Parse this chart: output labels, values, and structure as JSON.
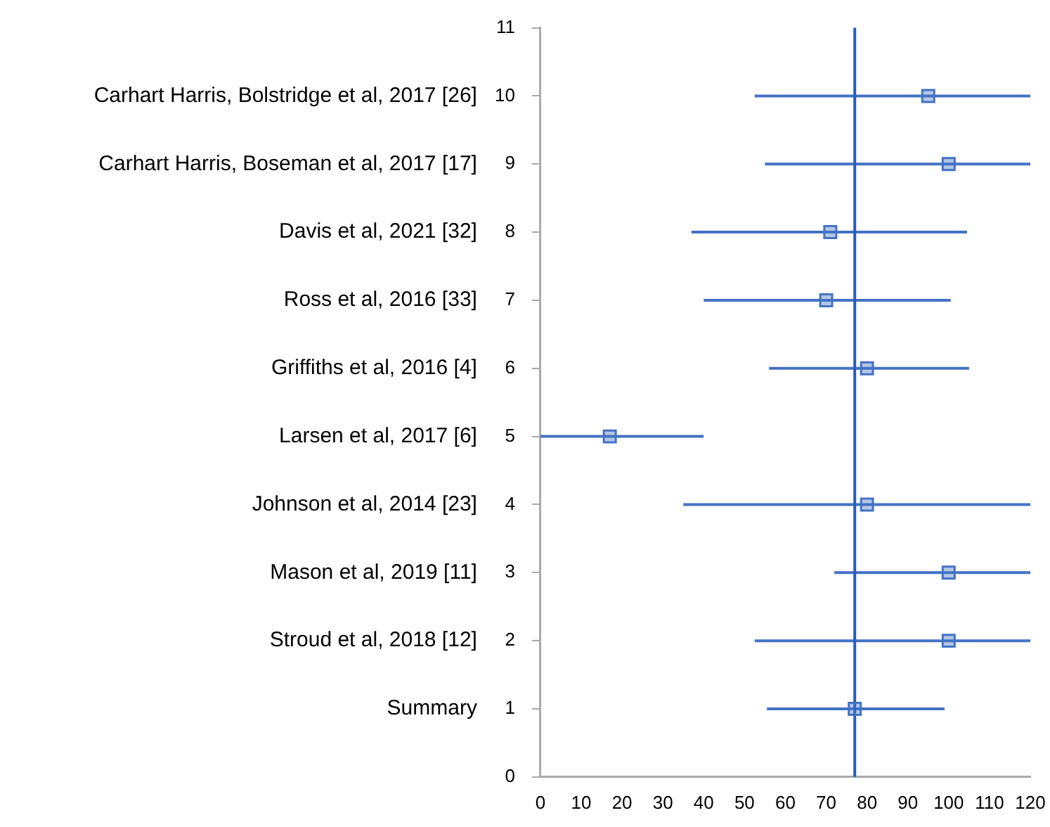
{
  "chart_data": {
    "type": "scatter",
    "marker": "square",
    "grid": false,
    "x": [
      95,
      100,
      71,
      70,
      80,
      17,
      80,
      100,
      100,
      77
    ],
    "series": [
      {
        "color": "#4472c4",
        "values": [
          10,
          9,
          8,
          7,
          6,
          5,
          4,
          3,
          2,
          1
        ],
        "xerrors": [
          [
            52.5,
            120
          ],
          [
            55,
            120
          ],
          [
            37,
            104.5
          ],
          [
            40,
            100.5
          ],
          [
            56,
            105
          ],
          [
            0,
            40
          ],
          [
            35,
            120
          ],
          [
            72,
            120
          ],
          [
            52.5,
            120
          ],
          [
            55.5,
            99
          ]
        ]
      }
    ],
    "xlim": [
      0,
      120
    ],
    "xticks": [
      0,
      10,
      20,
      30,
      40,
      50,
      60,
      70,
      80,
      90,
      100,
      110,
      120
    ],
    "ylim": [
      0,
      11
    ],
    "yticks": [
      0,
      1,
      2,
      3,
      4,
      5,
      6,
      7,
      8,
      9,
      10,
      11
    ],
    "ref_lines": [
      {
        "axis": "x",
        "value": 77,
        "color": "#2a5cb8"
      }
    ],
    "annotations": [
      "Carhart Harris, Bolstridge et al, 2017 [26]",
      "Carhart Harris, Boseman et al, 2017 [17]",
      "Davis et al, 2021 [32]",
      "Ross et al, 2016 [33]",
      "Griffiths et al, 2016 [4]",
      "Larsen et al, 2017 [6]",
      "Johnson et al, 2014 [23]",
      "Mason et al, 2019 [11]",
      "Stroud et al, 2018 [12]",
      "Summary"
    ]
  }
}
